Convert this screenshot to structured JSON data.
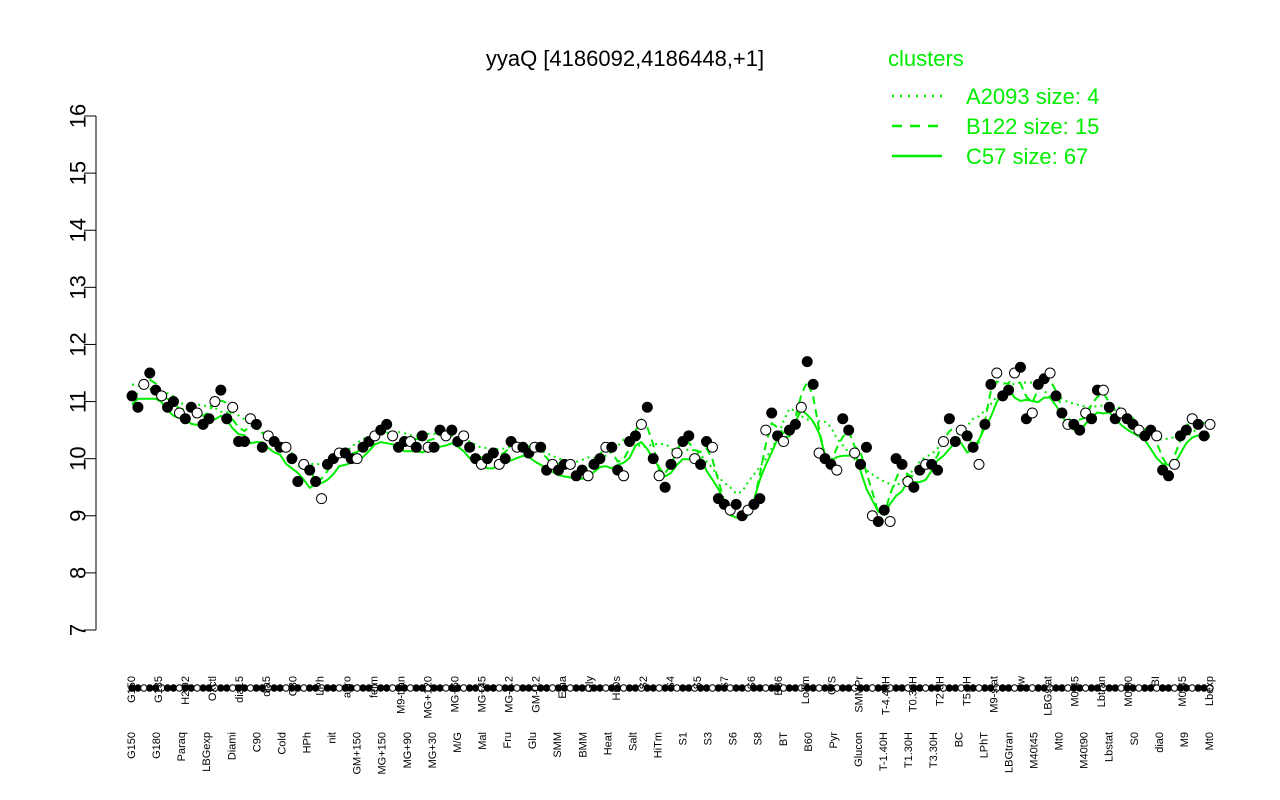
{
  "chart_data": {
    "type": "line",
    "title": "yyaQ [4186092,4186448,+1]",
    "xlabel": "",
    "ylabel": "",
    "ylim": [
      7,
      16
    ],
    "yticks": [
      7,
      8,
      9,
      10,
      11,
      12,
      13,
      14,
      15,
      16
    ],
    "grid": false,
    "legend": {
      "title": "clusters",
      "placement": "top-right",
      "color": "#00ee00",
      "entries": [
        {
          "label": "A2093 size: 4",
          "style": "dotted"
        },
        {
          "label": "B122 size: 15",
          "style": "dashed"
        },
        {
          "label": "C57 size: 67",
          "style": "solid"
        }
      ]
    },
    "tick_labels_top": [
      "G150",
      "G135",
      "H2O2",
      "Oxctl",
      "dia15",
      "dia5",
      "C30",
      "LPh",
      "aero",
      "ferm",
      "M9-tran",
      "MG+120",
      "MG+60",
      "MG+45",
      "MG-0.2",
      "GM-0.2",
      "Etha",
      "Gly",
      "HiOs",
      "S2",
      "S4",
      "S5",
      "S7",
      "S6",
      "B36",
      "LoTm",
      "G/S",
      "SMMPr",
      "T-4.40H",
      "T0.30H",
      "T2.0H",
      "T5.0H",
      "M9-stat",
      "Sw",
      "LBGstat",
      "M0t45",
      "Lbtran",
      "M0t90",
      "BI",
      "M0t45",
      "Lbexp"
    ],
    "tick_labels_bottom": [
      "G150",
      "G180",
      "Paraq",
      "LBGexp",
      "Diami",
      "C90",
      "Cold",
      "HPh",
      "nit",
      "GM+150",
      "MG+150",
      "MG+90",
      "MG+30",
      "M/G",
      "Mal",
      "Fru",
      "Glu",
      "SMM",
      "BMM",
      "Heat",
      "Salt",
      "HiTm",
      "S1",
      "S3",
      "S6",
      "S8",
      "BT",
      "B60",
      "Pyr",
      "Glucon",
      "T-1.40H",
      "T1.30H",
      "T3.30H",
      "BC",
      "LPhT",
      "LBGtran",
      "M40t45",
      "Mt0",
      "M40t90",
      "Lbstat",
      "S0",
      "dia0",
      "M9",
      "Mt0"
    ],
    "series": [
      {
        "style": "points",
        "values": [
          11.1,
          10.9,
          11.3,
          11.5,
          11.2,
          11.1,
          10.9,
          11.0,
          10.8,
          10.7,
          10.9,
          10.8,
          10.6,
          10.7,
          11.0,
          11.2,
          10.7,
          10.9,
          10.3,
          10.3,
          10.7,
          10.6,
          10.2,
          10.4,
          10.3,
          10.2,
          10.2,
          10.0,
          9.6,
          9.9,
          9.8,
          9.6,
          9.3,
          9.9,
          10.0,
          10.1,
          10.1,
          10.0,
          10.0,
          10.2,
          10.3,
          10.4,
          10.5,
          10.6,
          10.4,
          10.2,
          10.3,
          10.3,
          10.2,
          10.4,
          10.2,
          10.2,
          10.5,
          10.4,
          10.5,
          10.3,
          10.4,
          10.2,
          10.0,
          9.9,
          10.0,
          10.1,
          9.9,
          10.0,
          10.3,
          10.2,
          10.2,
          10.1,
          10.2,
          10.2,
          9.8,
          9.9,
          9.8,
          9.9,
          9.9,
          9.7,
          9.8,
          9.7,
          9.9,
          10.0,
          10.2,
          10.2,
          9.8,
          9.7,
          10.3,
          10.4,
          10.6,
          10.9,
          10.0,
          9.7,
          9.5,
          9.9,
          10.1,
          10.3,
          10.4,
          10.0,
          9.9,
          10.3,
          10.2,
          9.3,
          9.2,
          9.1,
          9.2,
          9.0,
          9.1,
          9.2,
          9.3,
          10.5,
          10.8,
          10.4,
          10.3,
          10.5,
          10.6,
          10.9,
          11.7,
          11.3,
          10.1,
          10.0,
          9.9,
          9.8,
          10.7,
          10.5,
          10.1,
          9.9,
          10.2,
          9.0,
          8.9,
          9.1,
          8.9,
          10.0,
          9.9,
          9.6,
          9.5,
          9.8,
          9.9,
          9.9,
          9.8,
          10.3,
          10.7,
          10.3,
          10.5,
          10.4,
          10.2,
          9.9,
          10.6,
          11.3,
          11.5,
          11.1,
          11.2,
          11.5,
          11.6,
          10.7,
          10.8,
          11.3,
          11.4,
          11.5,
          11.1,
          10.8,
          10.6,
          10.6,
          10.5,
          10.8,
          10.7,
          11.2,
          11.2,
          10.9,
          10.7,
          10.8,
          10.7,
          10.6,
          10.5,
          10.4,
          10.5,
          10.4,
          9.8,
          9.7,
          9.9,
          10.4,
          10.5,
          10.7,
          10.6,
          10.4,
          10.6
        ]
      }
    ]
  }
}
